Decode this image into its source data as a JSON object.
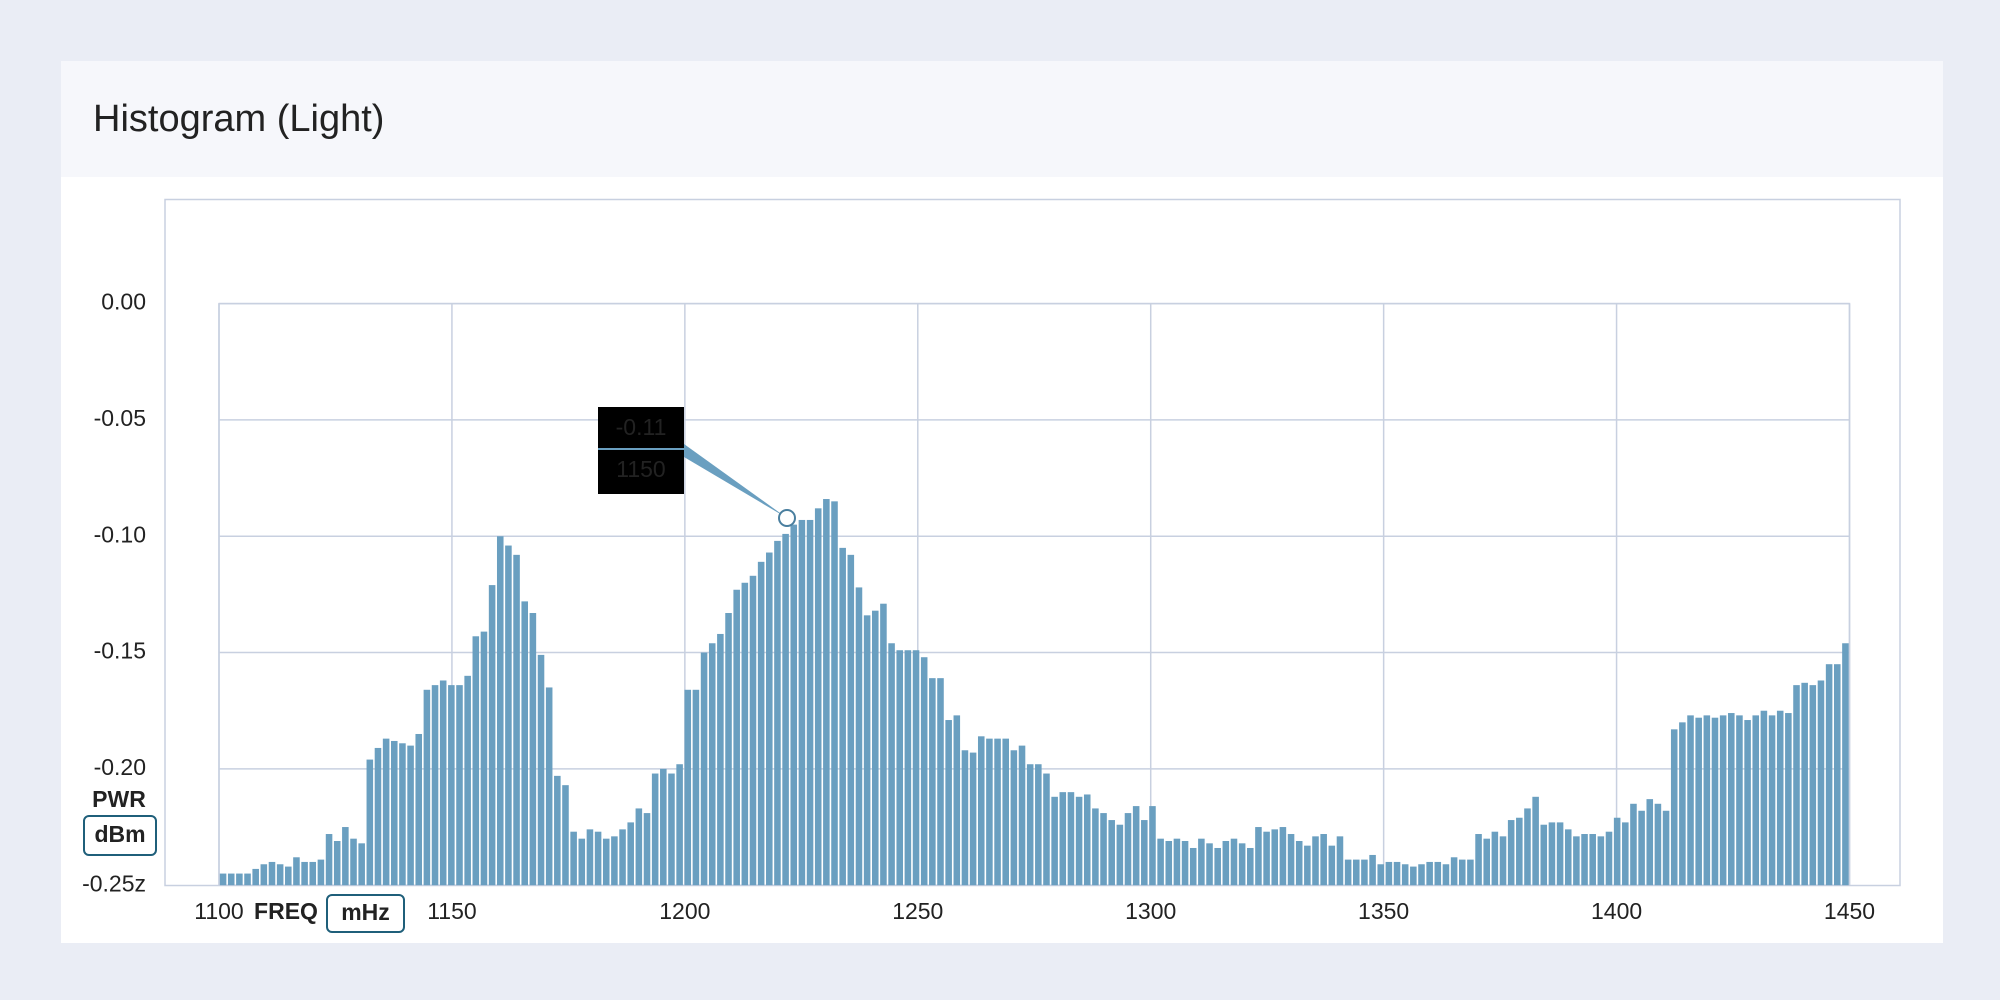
{
  "chart_data": {
    "type": "histogram",
    "title": "Histogram (Light)",
    "x_label": "FREQ",
    "x_unit": "mHz",
    "y_label": "PWR",
    "y_unit": "dBm",
    "color": "#6a9fc0",
    "grid": true,
    "xlim": [
      1100,
      1450
    ],
    "xticks": [
      1100,
      1150,
      1200,
      1250,
      1300,
      1350,
      1400,
      1450
    ],
    "ylim": [
      -0.25,
      0
    ],
    "yticks": [
      {
        "value": 0,
        "label": "0.00"
      },
      {
        "value": -0.05,
        "label": "-0.05"
      },
      {
        "value": -0.1,
        "label": "-0.10"
      },
      {
        "value": -0.15,
        "label": "-0.15"
      },
      {
        "value": -0.2,
        "label": "-0.20"
      },
      {
        "value": -0.25,
        "label": "-0.25z"
      }
    ],
    "tooltip": [
      "-0.11",
      "1150"
    ],
    "bins": [
      1100,
      1101.75,
      1103.5,
      1105.25,
      1107,
      1108.75,
      1110.5,
      1112.25,
      1114,
      1115.75,
      1117.5,
      1119.25,
      1121,
      1122.75,
      1124.5,
      1126.25,
      1128,
      1129.75,
      1131.5,
      1133.25,
      1135,
      1136.75,
      1138.5,
      1140.25,
      1142,
      1143.75,
      1145.5,
      1147.25,
      1149,
      1150.75,
      1152.5,
      1154.25,
      1156,
      1157.75,
      1159.5,
      1161.25,
      1163,
      1164.75,
      1166.5,
      1168.25,
      1170,
      1171.75,
      1173.5,
      1175.25,
      1177,
      1178.75,
      1180.5,
      1182.25,
      1184,
      1185.75,
      1187.5,
      1189.25,
      1191,
      1192.75,
      1194.5,
      1196.25,
      1198,
      1199.75,
      1201.5,
      1203.25,
      1205,
      1206.75,
      1208.5,
      1210.25,
      1212,
      1213.75,
      1215.5,
      1217.25,
      1219,
      1220.75,
      1222.5,
      1224.25,
      1226,
      1227.75,
      1229.5,
      1231.25,
      1233,
      1234.75,
      1236.5,
      1238.25,
      1240,
      1241.75,
      1243.5,
      1245.25,
      1247,
      1248.75,
      1250.5,
      1252.25,
      1254,
      1255.75,
      1257.5,
      1259.25,
      1261,
      1262.75,
      1264.5,
      1266.25,
      1268,
      1269.75,
      1271.5,
      1273.25,
      1275,
      1276.75,
      1278.5,
      1280.25,
      1282,
      1283.75,
      1285.5,
      1287.25,
      1289,
      1290.75,
      1292.5,
      1294.25,
      1296,
      1297.75,
      1299.5,
      1301.25,
      1303,
      1304.75,
      1306.5,
      1308.25,
      1310,
      1311.75,
      1313.5,
      1315.25,
      1317,
      1318.75,
      1320.5,
      1322.25,
      1324,
      1325.75,
      1327.5,
      1329.25,
      1331,
      1332.75,
      1334.5,
      1336.25,
      1338,
      1339.75,
      1341.5,
      1343.25,
      1345,
      1346.75,
      1348.5,
      1350.25,
      1352,
      1353.75,
      1355.5,
      1357.25,
      1359,
      1360.75,
      1362.5,
      1364.25,
      1366,
      1367.75,
      1369.5,
      1371.25,
      1373,
      1374.75,
      1376.5,
      1378.25,
      1380,
      1381.75,
      1383.5,
      1385.25,
      1387,
      1388.75,
      1390.5,
      1392.25,
      1394,
      1395.75,
      1397.5,
      1399.25,
      1401,
      1402.75,
      1404.5,
      1406.25,
      1408,
      1409.75,
      1411.5,
      1413.25,
      1415,
      1416.75,
      1418.5,
      1420.25,
      1422,
      1423.75,
      1425.5,
      1427.25,
      1429,
      1430.75,
      1432.5,
      1434.25,
      1436,
      1437.75,
      1439.5,
      1441.25,
      1443,
      1444.75,
      1446.5,
      1448.25,
      1450
    ],
    "values": [
      -0.245,
      -0.245,
      -0.245,
      -0.245,
      -0.243,
      -0.241,
      -0.24,
      -0.241,
      -0.242,
      -0.238,
      -0.24,
      -0.24,
      -0.239,
      -0.228,
      -0.231,
      -0.225,
      -0.23,
      -0.232,
      -0.196,
      -0.191,
      -0.187,
      -0.188,
      -0.189,
      -0.19,
      -0.185,
      -0.166,
      -0.164,
      -0.162,
      -0.164,
      -0.164,
      -0.16,
      -0.143,
      -0.141,
      -0.121,
      -0.1,
      -0.104,
      -0.108,
      -0.128,
      -0.133,
      -0.151,
      -0.165,
      -0.203,
      -0.207,
      -0.227,
      -0.23,
      -0.226,
      -0.227,
      -0.23,
      -0.229,
      -0.226,
      -0.223,
      -0.217,
      -0.219,
      -0.202,
      -0.2,
      -0.202,
      -0.198,
      -0.166,
      -0.166,
      -0.15,
      -0.146,
      -0.142,
      -0.133,
      -0.123,
      -0.12,
      -0.117,
      -0.111,
      -0.107,
      -0.102,
      -0.099,
      -0.095,
      -0.093,
      -0.093,
      -0.088,
      -0.084,
      -0.085,
      -0.105,
      -0.108,
      -0.122,
      -0.134,
      -0.132,
      -0.129,
      -0.146,
      -0.149,
      -0.149,
      -0.149,
      -0.152,
      -0.161,
      -0.161,
      -0.179,
      -0.177,
      -0.192,
      -0.193,
      -0.186,
      -0.187,
      -0.187,
      -0.187,
      -0.192,
      -0.19,
      -0.198,
      -0.198,
      -0.202,
      -0.212,
      -0.21,
      -0.21,
      -0.212,
      -0.211,
      -0.217,
      -0.219,
      -0.222,
      -0.224,
      -0.219,
      -0.216,
      -0.222,
      -0.216,
      -0.23,
      -0.231,
      -0.23,
      -0.231,
      -0.234,
      -0.23,
      -0.232,
      -0.234,
      -0.231,
      -0.23,
      -0.232,
      -0.234,
      -0.225,
      -0.227,
      -0.226,
      -0.225,
      -0.228,
      -0.231,
      -0.233,
      -0.229,
      -0.228,
      -0.233,
      -0.229,
      -0.239,
      -0.239,
      -0.239,
      -0.237,
      -0.241,
      -0.24,
      -0.24,
      -0.241,
      -0.242,
      -0.241,
      -0.24,
      -0.24,
      -0.241,
      -0.238,
      -0.239,
      -0.239,
      -0.228,
      -0.23,
      -0.227,
      -0.229,
      -0.222,
      -0.221,
      -0.217,
      -0.212,
      -0.224,
      -0.223,
      -0.223,
      -0.226,
      -0.229,
      -0.228,
      -0.228,
      -0.229,
      -0.227,
      -0.221,
      -0.223,
      -0.215,
      -0.218,
      -0.213,
      -0.215,
      -0.218,
      -0.183,
      -0.18,
      -0.177,
      -0.178,
      -0.177,
      -0.178,
      -0.177,
      -0.176,
      -0.177,
      -0.179,
      -0.177,
      -0.175,
      -0.177,
      -0.175,
      -0.176,
      -0.164,
      -0.163,
      -0.164,
      -0.162,
      -0.155,
      -0.155,
      -0.146
    ]
  }
}
